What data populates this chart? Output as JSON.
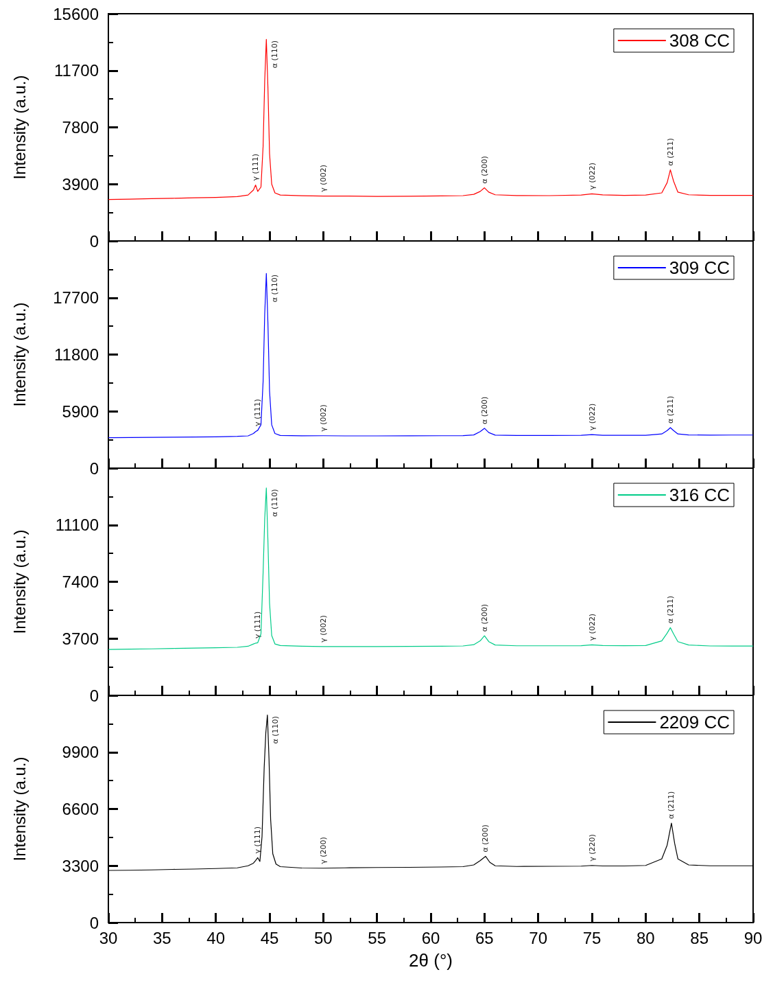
{
  "chart_data": [
    {
      "type": "line",
      "ylabel": "Intensity (a.u.)",
      "xlim": [
        30,
        90
      ],
      "xticks": [
        30,
        35,
        40,
        45,
        50,
        55,
        60,
        65,
        70,
        75,
        80,
        85,
        90
      ],
      "ylim": [
        0,
        15600
      ],
      "yticks": [
        0,
        3900,
        7800,
        11700,
        15600
      ],
      "tick_labels": "y",
      "legend": "top right",
      "grid": false,
      "marker": "none",
      "x": [
        30,
        32,
        34,
        36,
        38,
        40,
        42,
        43,
        43.5,
        43.7,
        43.9,
        44.2,
        44.4,
        44.55,
        44.7,
        44.85,
        45.0,
        45.2,
        45.5,
        46,
        48,
        50,
        52,
        55,
        58,
        61,
        63,
        64,
        64.6,
        65,
        65.4,
        66,
        68,
        71,
        74,
        75,
        76,
        78,
        80,
        81.5,
        82,
        82.3,
        82.6,
        83,
        84,
        86,
        88,
        90
      ],
      "series": [
        {
          "name": "308 CC",
          "color": "#ff0000",
          "values": [
            2850,
            2870,
            2900,
            2930,
            2960,
            2990,
            3050,
            3150,
            3500,
            3840,
            3400,
            3700,
            6500,
            11000,
            13840,
            10500,
            6000,
            3900,
            3300,
            3150,
            3100,
            3080,
            3080,
            3060,
            3070,
            3090,
            3110,
            3200,
            3400,
            3650,
            3350,
            3170,
            3120,
            3110,
            3150,
            3230,
            3160,
            3130,
            3150,
            3300,
            4000,
            4880,
            4100,
            3350,
            3170,
            3130,
            3130,
            3130
          ]
        }
      ],
      "annotations": [
        {
          "text": "γ (111)",
          "x": 43.7,
          "y": 3840
        },
        {
          "text": "α (110)",
          "x": 44.7,
          "y": 13840
        },
        {
          "text": "γ (002)",
          "x": 50,
          "y": 3080
        },
        {
          "text": "α (200)",
          "x": 65,
          "y": 3650
        },
        {
          "text": "γ (022)",
          "x": 75,
          "y": 3230
        },
        {
          "text": "α (211)",
          "x": 82.3,
          "y": 4880
        }
      ]
    },
    {
      "type": "line",
      "ylabel": "Intensity (a.u.)",
      "xlim": [
        30,
        90
      ],
      "xticks": [
        30,
        35,
        40,
        45,
        50,
        55,
        60,
        65,
        70,
        75,
        80,
        85,
        90
      ],
      "ylim": [
        0,
        23600
      ],
      "yticks": [
        0,
        5900,
        11800,
        17700
      ],
      "tick_labels": "y",
      "legend": "top right",
      "grid": false,
      "marker": "none",
      "x": [
        30,
        32,
        34,
        36,
        38,
        40,
        42,
        43,
        43.5,
        43.7,
        43.9,
        44.2,
        44.4,
        44.55,
        44.7,
        44.85,
        45.0,
        45.2,
        45.5,
        46,
        48,
        50,
        52,
        55,
        58,
        61,
        63,
        64,
        64.6,
        65,
        65.4,
        66,
        68,
        71,
        74,
        75,
        76,
        78,
        80,
        81.5,
        82,
        82.3,
        82.6,
        83,
        84,
        86,
        88,
        90
      ],
      "series": [
        {
          "name": "309 CC",
          "color": "#0000ff",
          "values": [
            3160,
            3180,
            3200,
            3220,
            3240,
            3260,
            3300,
            3350,
            3600,
            3800,
            3930,
            4500,
            9000,
            16000,
            20230,
            15000,
            8000,
            4500,
            3600,
            3400,
            3360,
            3370,
            3350,
            3350,
            3360,
            3370,
            3380,
            3450,
            3800,
            4140,
            3700,
            3430,
            3400,
            3400,
            3420,
            3480,
            3420,
            3420,
            3420,
            3550,
            3900,
            4210,
            3900,
            3550,
            3450,
            3430,
            3440,
            3440
          ]
        }
      ],
      "annotations": [
        {
          "text": "γ (111)",
          "x": 43.9,
          "y": 3930
        },
        {
          "text": "α (110)",
          "x": 44.7,
          "y": 20230
        },
        {
          "text": "γ (002)",
          "x": 50,
          "y": 3370
        },
        {
          "text": "α (200)",
          "x": 65,
          "y": 4140
        },
        {
          "text": "γ (022)",
          "x": 75,
          "y": 3480
        },
        {
          "text": "α (211)",
          "x": 82.3,
          "y": 4210
        }
      ]
    },
    {
      "type": "line",
      "ylabel": "Intensity (a.u.)",
      "xlim": [
        30,
        90
      ],
      "xticks": [
        30,
        35,
        40,
        45,
        50,
        55,
        60,
        65,
        70,
        75,
        80,
        85,
        90
      ],
      "ylim": [
        0,
        14800
      ],
      "yticks": [
        0,
        3700,
        7400,
        11100
      ],
      "tick_labels": "y",
      "legend": "top right",
      "grid": false,
      "marker": "none",
      "x": [
        30,
        32,
        34,
        36,
        38,
        40,
        42,
        43,
        43.5,
        43.7,
        43.9,
        44.2,
        44.4,
        44.55,
        44.7,
        44.85,
        45.0,
        45.2,
        45.5,
        46,
        48,
        50,
        52,
        55,
        58,
        61,
        63,
        64,
        64.6,
        65,
        65.4,
        66,
        68,
        71,
        74,
        75,
        76,
        78,
        80,
        81.5,
        82,
        82.3,
        82.6,
        83,
        84,
        86,
        88,
        90
      ],
      "series": [
        {
          "name": "316 CC",
          "color": "#00cc88",
          "values": [
            2990,
            3010,
            3030,
            3060,
            3080,
            3100,
            3130,
            3200,
            3350,
            3400,
            3430,
            4000,
            8000,
            11500,
            13510,
            10000,
            6000,
            3900,
            3350,
            3250,
            3200,
            3180,
            3180,
            3180,
            3190,
            3200,
            3220,
            3300,
            3550,
            3880,
            3500,
            3280,
            3230,
            3230,
            3240,
            3290,
            3250,
            3240,
            3250,
            3550,
            4050,
            4410,
            4000,
            3500,
            3280,
            3220,
            3210,
            3210
          ]
        }
      ],
      "annotations": [
        {
          "text": "γ (111)",
          "x": 43.9,
          "y": 3430
        },
        {
          "text": "α (110)",
          "x": 44.7,
          "y": 13510
        },
        {
          "text": "γ (002)",
          "x": 50,
          "y": 3180
        },
        {
          "text": "α (200)",
          "x": 65,
          "y": 3880
        },
        {
          "text": "γ (022)",
          "x": 75,
          "y": 3290
        },
        {
          "text": "α (211)",
          "x": 82.3,
          "y": 4410
        }
      ]
    },
    {
      "type": "line",
      "xlabel": "2θ (°)",
      "ylabel": "Intensity (a.u.)",
      "xlim": [
        30,
        90
      ],
      "xticks": [
        30,
        35,
        40,
        45,
        50,
        55,
        60,
        65,
        70,
        75,
        80,
        85,
        90
      ],
      "ylim": [
        0,
        13200
      ],
      "yticks": [
        0,
        3300,
        6600,
        9900
      ],
      "legend": "top right",
      "grid": false,
      "marker": "none",
      "x": [
        30,
        32,
        34,
        36,
        38,
        40,
        42,
        43,
        43.5,
        43.7,
        43.9,
        44.1,
        44.3,
        44.5,
        44.65,
        44.8,
        44.95,
        45.1,
        45.3,
        45.6,
        46,
        48,
        50,
        52,
        55,
        58,
        61,
        63,
        64,
        64.6,
        65.1,
        65.5,
        66,
        68,
        71,
        74,
        75,
        76,
        78,
        80,
        81.5,
        82,
        82.4,
        82.7,
        83,
        84,
        86,
        88,
        90
      ],
      "series": [
        {
          "name": "2209 CC",
          "color": "#000000",
          "values": [
            3030,
            3040,
            3060,
            3090,
            3110,
            3140,
            3180,
            3300,
            3450,
            3600,
            3770,
            3550,
            5000,
            9000,
            11000,
            12060,
            9500,
            6000,
            4000,
            3400,
            3250,
            3170,
            3160,
            3180,
            3200,
            3210,
            3230,
            3250,
            3350,
            3600,
            3850,
            3500,
            3300,
            3260,
            3270,
            3280,
            3320,
            3290,
            3290,
            3320,
            3700,
            4500,
            5780,
            4600,
            3700,
            3350,
            3300,
            3300,
            3300
          ]
        }
      ],
      "annotations": [
        {
          "text": "γ (111)",
          "x": 43.9,
          "y": 3770
        },
        {
          "text": "α (110)",
          "x": 44.8,
          "y": 12060
        },
        {
          "text": "γ (200)",
          "x": 50,
          "y": 3160
        },
        {
          "text": "α (200)",
          "x": 65.1,
          "y": 3850
        },
        {
          "text": "γ (220)",
          "x": 75,
          "y": 3320
        },
        {
          "text": "α (211)",
          "x": 82.4,
          "y": 5780
        }
      ]
    }
  ]
}
